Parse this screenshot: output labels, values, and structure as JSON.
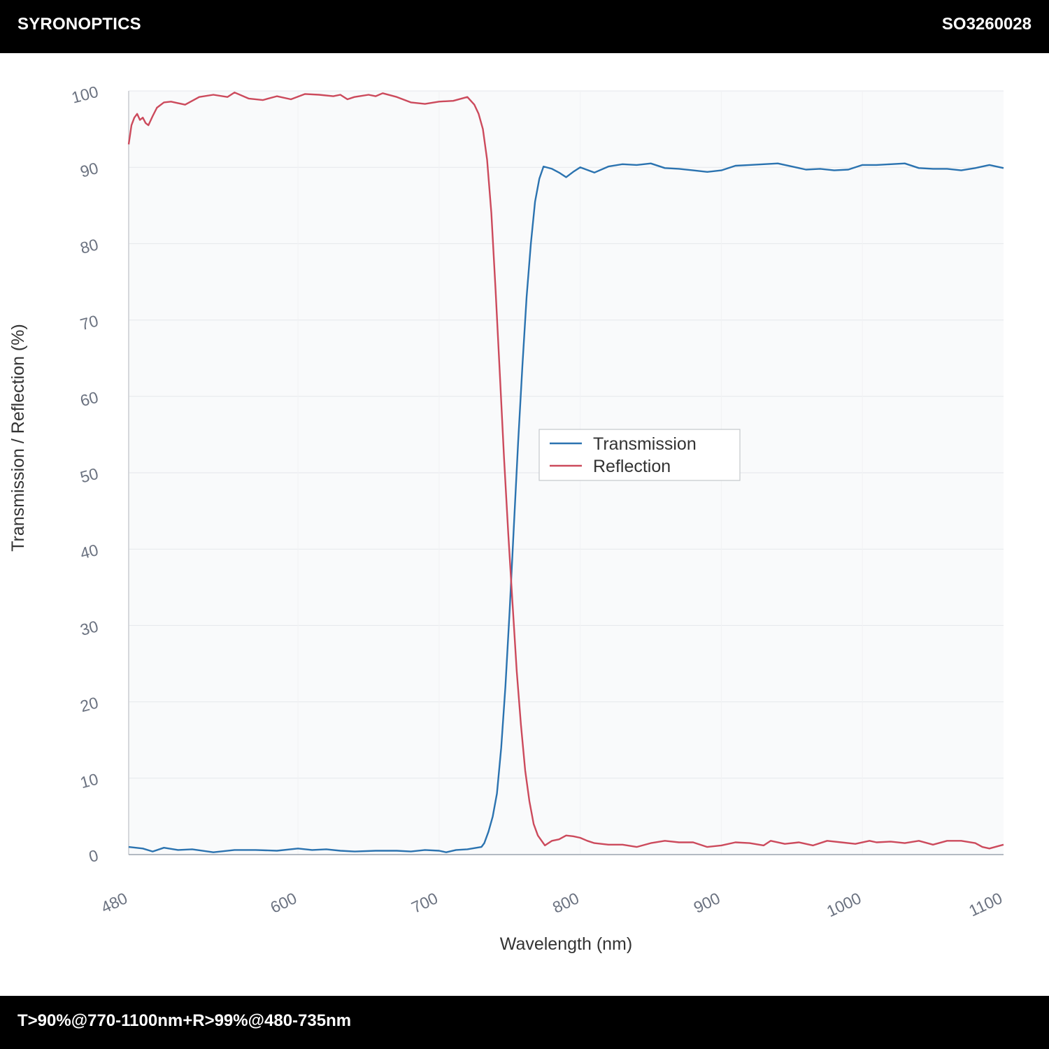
{
  "header": {
    "brand": "SYRONOPTICS",
    "part_number": "SO3260028"
  },
  "footer": {
    "spec": "T>90%@770-1100nm+R>99%@480-735nm"
  },
  "colors": {
    "transmission": "#2b73b0",
    "reflection": "#cc4a5c",
    "plot_bg": "#f9fafb",
    "grid": "#e5e7eb"
  },
  "chart_data": {
    "type": "line",
    "title": "",
    "xlabel": "Wavelength (nm)",
    "ylabel": "Transmission / Reflection (%)",
    "xlim": [
      480,
      1100
    ],
    "ylim": [
      0,
      100
    ],
    "x_ticks": [
      480,
      600,
      700,
      800,
      900,
      1000,
      1100
    ],
    "y_ticks": [
      0,
      10,
      20,
      30,
      40,
      50,
      60,
      70,
      80,
      90,
      100
    ],
    "grid": true,
    "legend_position": "center",
    "series": [
      {
        "name": "Transmission",
        "color": "#2b73b0",
        "points": [
          [
            480,
            1.0
          ],
          [
            490,
            0.8
          ],
          [
            497,
            0.4
          ],
          [
            505,
            0.9
          ],
          [
            515,
            0.6
          ],
          [
            525,
            0.7
          ],
          [
            540,
            0.3
          ],
          [
            555,
            0.6
          ],
          [
            570,
            0.6
          ],
          [
            585,
            0.5
          ],
          [
            600,
            0.8
          ],
          [
            610,
            0.6
          ],
          [
            620,
            0.7
          ],
          [
            630,
            0.5
          ],
          [
            640,
            0.4
          ],
          [
            655,
            0.5
          ],
          [
            670,
            0.5
          ],
          [
            680,
            0.4
          ],
          [
            690,
            0.6
          ],
          [
            700,
            0.5
          ],
          [
            705,
            0.3
          ],
          [
            712,
            0.6
          ],
          [
            720,
            0.7
          ],
          [
            730,
            1.0
          ],
          [
            732,
            1.5
          ],
          [
            735,
            3.0
          ],
          [
            738,
            5.0
          ],
          [
            741,
            8.0
          ],
          [
            744,
            14.0
          ],
          [
            747,
            22.0
          ],
          [
            750,
            32.0
          ],
          [
            753,
            43.0
          ],
          [
            756,
            54.0
          ],
          [
            759,
            64.0
          ],
          [
            762,
            73.0
          ],
          [
            765,
            80.0
          ],
          [
            768,
            85.5
          ],
          [
            771,
            88.5
          ],
          [
            774,
            90.1
          ],
          [
            780,
            89.8
          ],
          [
            785,
            89.3
          ],
          [
            790,
            88.7
          ],
          [
            795,
            89.4
          ],
          [
            800,
            90.0
          ],
          [
            810,
            89.3
          ],
          [
            820,
            90.1
          ],
          [
            830,
            90.4
          ],
          [
            840,
            90.3
          ],
          [
            850,
            90.5
          ],
          [
            860,
            89.9
          ],
          [
            870,
            89.8
          ],
          [
            880,
            89.6
          ],
          [
            890,
            89.4
          ],
          [
            900,
            89.6
          ],
          [
            910,
            90.2
          ],
          [
            920,
            90.3
          ],
          [
            930,
            90.4
          ],
          [
            940,
            90.5
          ],
          [
            950,
            90.1
          ],
          [
            960,
            89.7
          ],
          [
            970,
            89.8
          ],
          [
            980,
            89.6
          ],
          [
            990,
            89.7
          ],
          [
            1000,
            90.3
          ],
          [
            1010,
            90.3
          ],
          [
            1020,
            90.4
          ],
          [
            1030,
            90.5
          ],
          [
            1040,
            89.9
          ],
          [
            1050,
            89.8
          ],
          [
            1060,
            89.8
          ],
          [
            1070,
            89.6
          ],
          [
            1080,
            89.9
          ],
          [
            1090,
            90.3
          ],
          [
            1100,
            89.9
          ]
        ]
      },
      {
        "name": "Reflection",
        "color": "#cc4a5c",
        "points": [
          [
            480,
            93.0
          ],
          [
            482,
            95.5
          ],
          [
            484,
            96.5
          ],
          [
            486,
            97.0
          ],
          [
            488,
            96.2
          ],
          [
            490,
            96.5
          ],
          [
            492,
            95.8
          ],
          [
            494,
            95.5
          ],
          [
            497,
            96.7
          ],
          [
            500,
            97.8
          ],
          [
            505,
            98.5
          ],
          [
            510,
            98.6
          ],
          [
            520,
            98.2
          ],
          [
            530,
            99.2
          ],
          [
            540,
            99.5
          ],
          [
            550,
            99.2
          ],
          [
            555,
            99.8
          ],
          [
            565,
            99.0
          ],
          [
            575,
            98.8
          ],
          [
            585,
            99.3
          ],
          [
            595,
            98.9
          ],
          [
            605,
            99.6
          ],
          [
            615,
            99.5
          ],
          [
            625,
            99.3
          ],
          [
            630,
            99.5
          ],
          [
            635,
            98.9
          ],
          [
            640,
            99.2
          ],
          [
            650,
            99.5
          ],
          [
            655,
            99.3
          ],
          [
            660,
            99.7
          ],
          [
            670,
            99.2
          ],
          [
            680,
            98.5
          ],
          [
            690,
            98.3
          ],
          [
            700,
            98.6
          ],
          [
            710,
            98.7
          ],
          [
            720,
            99.2
          ],
          [
            725,
            98.2
          ],
          [
            728,
            97.0
          ],
          [
            731,
            95.0
          ],
          [
            734,
            91.0
          ],
          [
            737,
            84.0
          ],
          [
            740,
            74.0
          ],
          [
            743,
            63.0
          ],
          [
            746,
            52.0
          ],
          [
            749,
            42.0
          ],
          [
            752,
            33.0
          ],
          [
            755,
            24.0
          ],
          [
            758,
            17.0
          ],
          [
            761,
            11.0
          ],
          [
            764,
            7.0
          ],
          [
            767,
            4.0
          ],
          [
            770,
            2.5
          ],
          [
            775,
            1.2
          ],
          [
            780,
            1.8
          ],
          [
            785,
            2.0
          ],
          [
            790,
            2.5
          ],
          [
            795,
            2.4
          ],
          [
            800,
            2.2
          ],
          [
            805,
            1.8
          ],
          [
            810,
            1.5
          ],
          [
            820,
            1.3
          ],
          [
            830,
            1.3
          ],
          [
            840,
            1.0
          ],
          [
            850,
            1.5
          ],
          [
            860,
            1.8
          ],
          [
            870,
            1.6
          ],
          [
            880,
            1.6
          ],
          [
            890,
            1.0
          ],
          [
            900,
            1.2
          ],
          [
            910,
            1.6
          ],
          [
            920,
            1.5
          ],
          [
            930,
            1.2
          ],
          [
            935,
            1.8
          ],
          [
            945,
            1.4
          ],
          [
            955,
            1.6
          ],
          [
            965,
            1.2
          ],
          [
            975,
            1.8
          ],
          [
            985,
            1.6
          ],
          [
            995,
            1.4
          ],
          [
            1005,
            1.8
          ],
          [
            1010,
            1.6
          ],
          [
            1020,
            1.7
          ],
          [
            1030,
            1.5
          ],
          [
            1040,
            1.8
          ],
          [
            1050,
            1.3
          ],
          [
            1060,
            1.8
          ],
          [
            1070,
            1.8
          ],
          [
            1080,
            1.5
          ],
          [
            1085,
            1.0
          ],
          [
            1090,
            0.8
          ],
          [
            1100,
            1.3
          ]
        ]
      }
    ]
  }
}
